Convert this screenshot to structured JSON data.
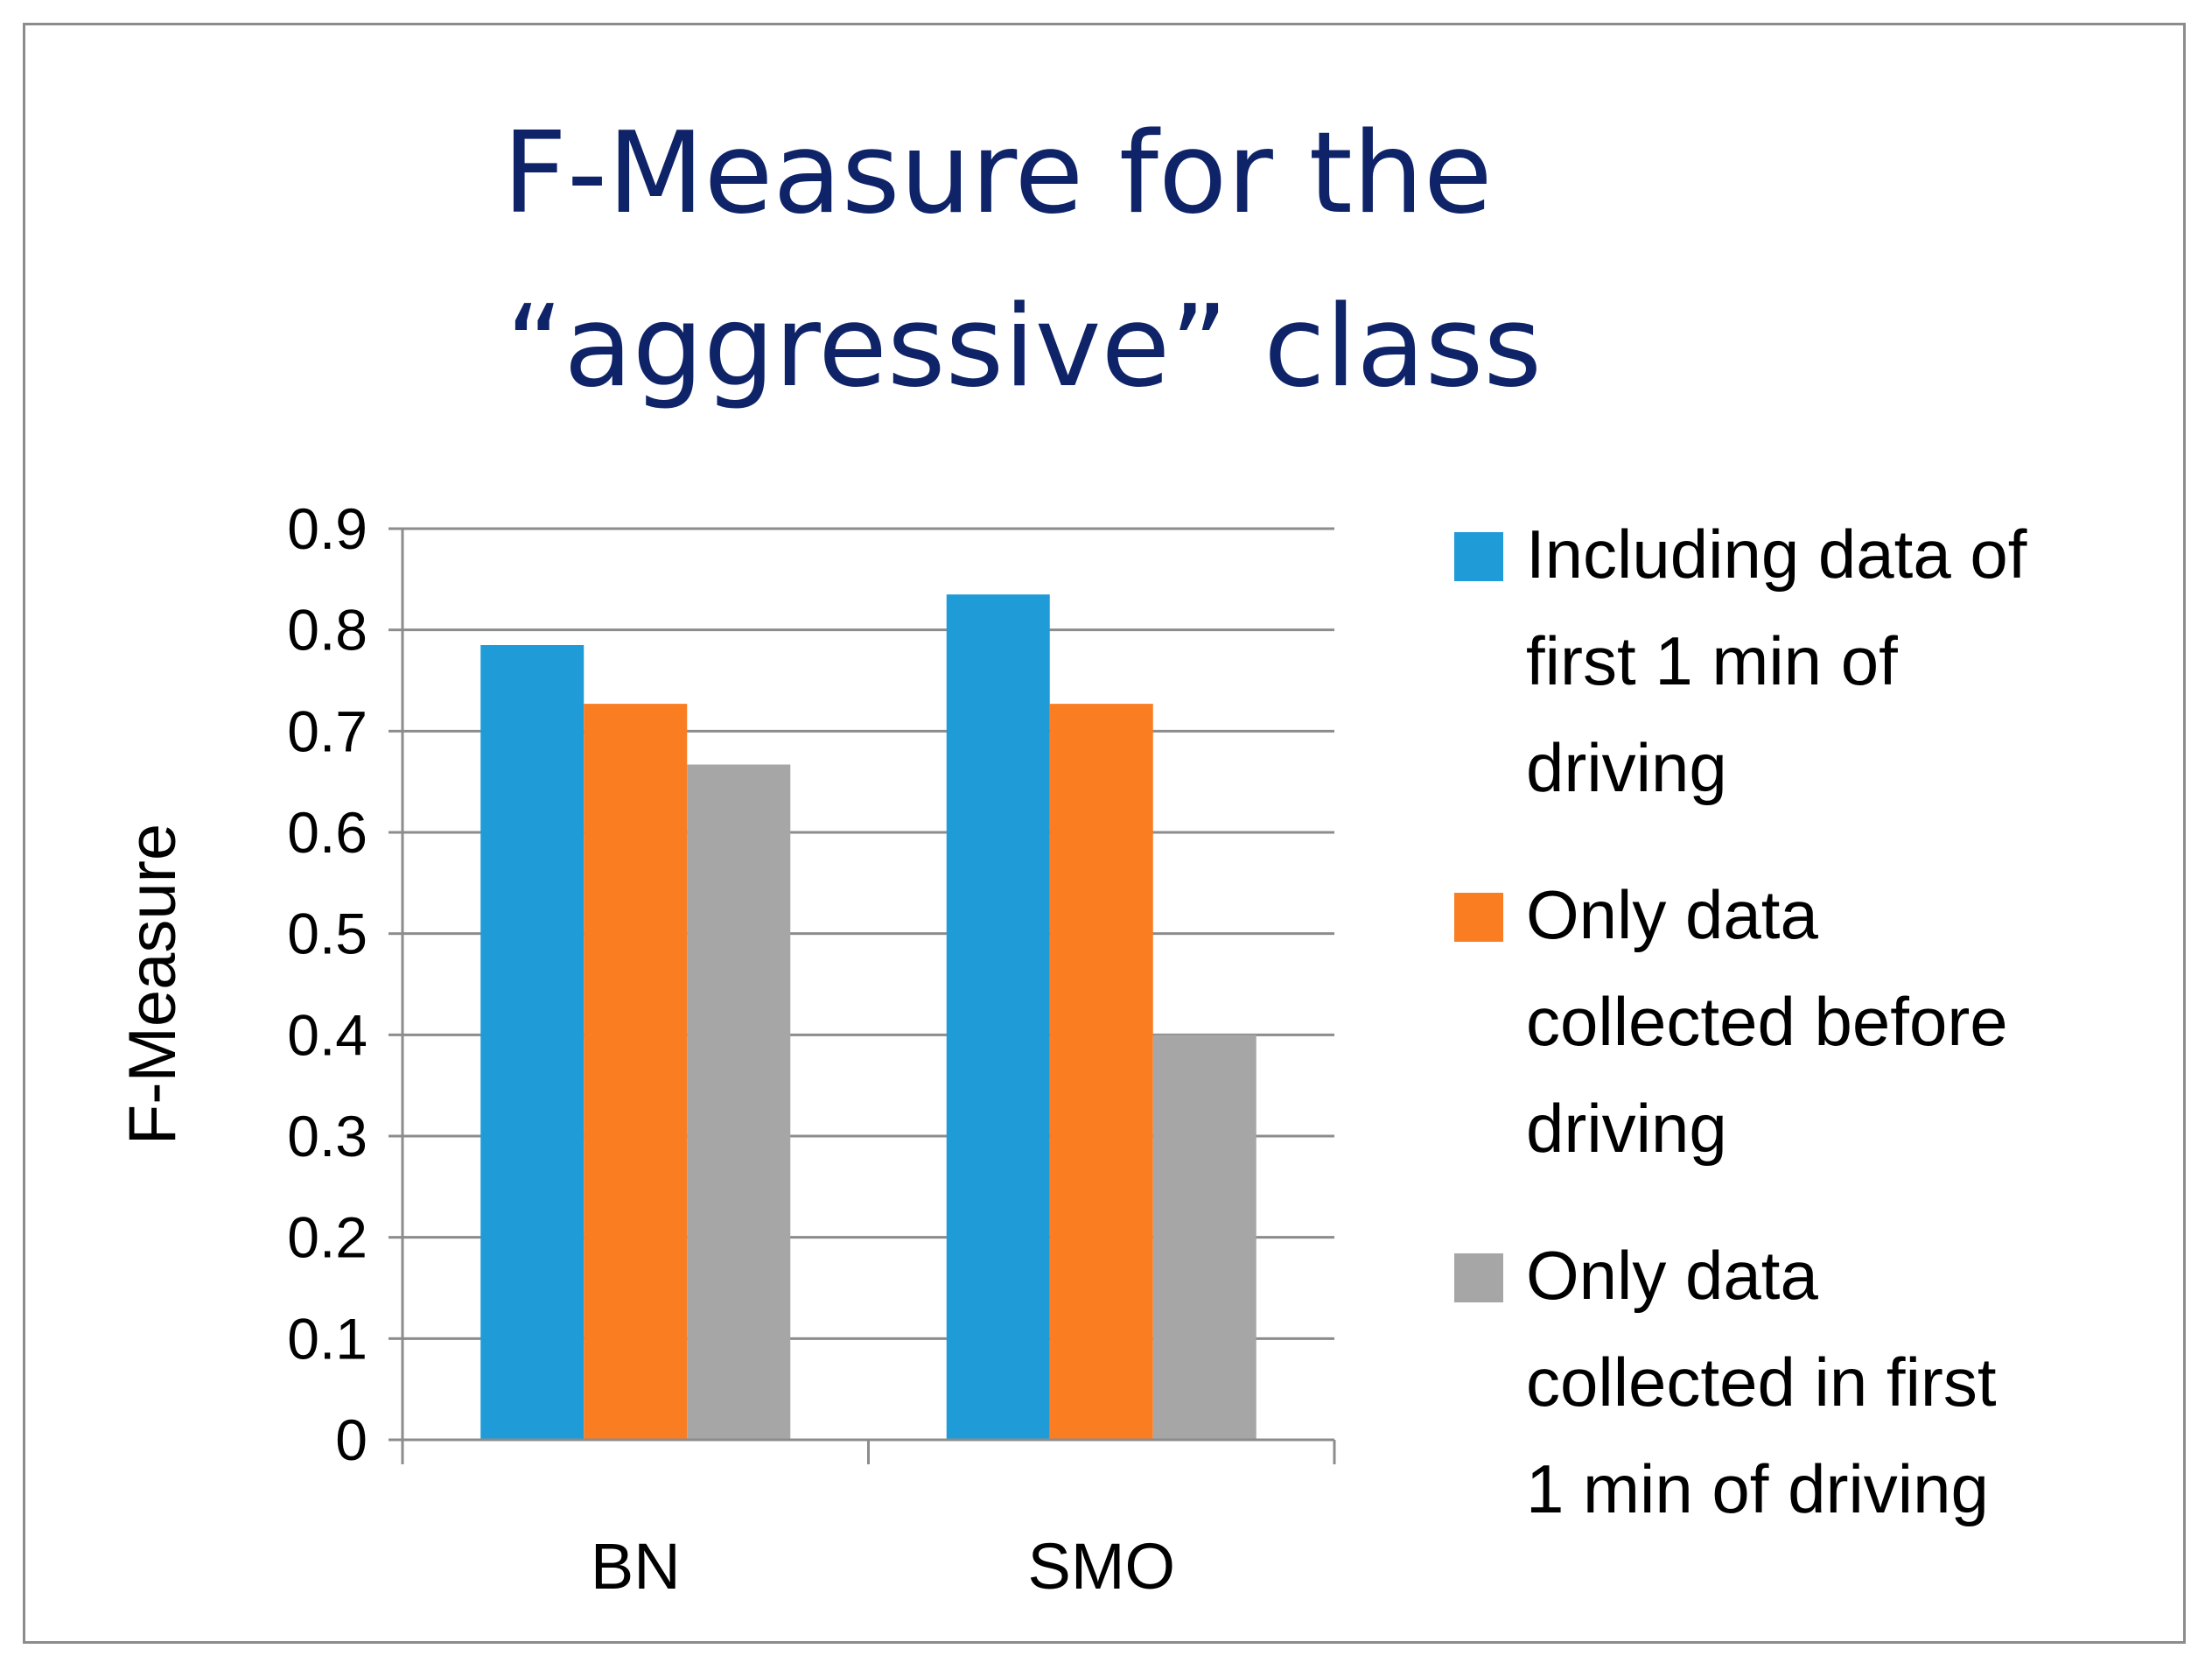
{
  "chart_data": {
    "type": "bar",
    "title": [
      "F-Measure for the",
      "“aggressive” class"
    ],
    "xlabel": "",
    "ylabel": "F-Measure",
    "ylim": [
      0,
      0.9
    ],
    "yticks": [
      "0",
      "0.1",
      "0.2",
      "0.3",
      "0.4",
      "0.5",
      "0.6",
      "0.7",
      "0.8",
      "0.9"
    ],
    "categories": [
      "BN",
      "SMO"
    ],
    "grid": true,
    "legend_position": "right",
    "series": [
      {
        "name": "Including data of first 1 min of driving",
        "legend_lines": [
          "Including data of",
          "first 1 min of",
          "driving"
        ],
        "color": "#1f9bd7",
        "values": [
          0.785,
          0.835
        ]
      },
      {
        "name": "Only data collected before driving",
        "legend_lines": [
          "Only data",
          "collected before",
          "driving"
        ],
        "color": "#fb7d22",
        "values": [
          0.727,
          0.727
        ]
      },
      {
        "name": "Only data collected in first 1 min of driving",
        "legend_lines": [
          "Only data",
          "collected in first",
          "1 min of driving"
        ],
        "color": "#a6a6a6",
        "values": [
          0.667,
          0.4
        ]
      }
    ]
  }
}
